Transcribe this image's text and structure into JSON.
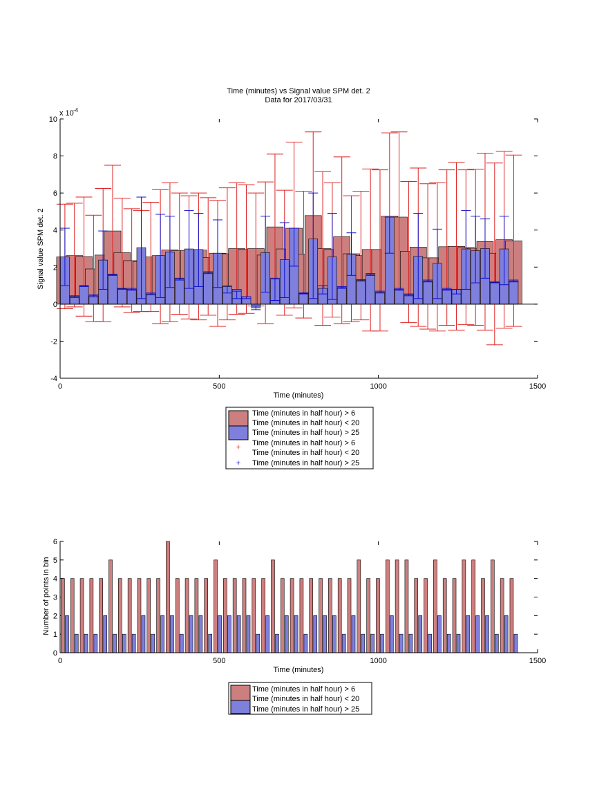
{
  "colors": {
    "red_face": "#cd7f7f",
    "blue_face": "#7f7fdd",
    "red_line": "#dd2222",
    "blue_line": "#1111cc",
    "edge": "#000000"
  },
  "chart_data": [
    {
      "type": "bar",
      "title": "Time (minutes) vs Signal value SPM det. 2",
      "subtitle": "Data for 2017/03/31",
      "xlabel": "Time (minutes)",
      "ylabel": "Signal value SPM det. 2",
      "yexponent": "x 10",
      "yexponent_power": "-4",
      "xlim": [
        0,
        1500
      ],
      "ylim": [
        -4,
        10
      ],
      "xticks": [
        "0",
        "500",
        "1000",
        "1500"
      ],
      "xtick_values": [
        0,
        500,
        1000,
        1500
      ],
      "yticks": [
        "-4",
        "-2",
        "0",
        "2",
        "4",
        "6",
        "8",
        "10"
      ],
      "ytick_values": [
        -4,
        -2,
        0,
        2,
        4,
        6,
        8,
        10
      ],
      "grid": false,
      "legend_position": "below",
      "legend": [
        "Time (minutes in half hour) > 6",
        "Time (minutes in half hour) < 20",
        "Time (minutes in half hour) > 25",
        "Time (minutes in half hour) > 6",
        "Time (minutes in half hour) < 20",
        "Time (minutes in half hour) > 25"
      ],
      "x": [
        15,
        45,
        75,
        105,
        135,
        165,
        195,
        225,
        255,
        285,
        315,
        345,
        375,
        405,
        435,
        465,
        495,
        525,
        555,
        585,
        615,
        645,
        675,
        705,
        735,
        765,
        795,
        825,
        855,
        885,
        915,
        945,
        975,
        1005,
        1035,
        1065,
        1095,
        1125,
        1155,
        1185,
        1215,
        1245,
        1275,
        1305,
        1335,
        1365,
        1395,
        1425
      ],
      "series": [
        {
          "values": [
            2.55,
            2.62,
            2.57,
            1.9,
            2.65,
            3.95,
            2.78,
            2.35,
            2.3,
            2.55,
            2.62,
            2.93,
            2.9,
            2.9,
            2.92,
            2.52,
            2.75,
            2.72,
            3.0,
            2.95,
            3.0,
            2.65,
            4.17,
            2.98,
            4.1,
            2.7,
            4.78,
            3.0,
            2.95,
            3.65,
            2.72,
            2.62,
            2.95,
            2.95,
            4.75,
            4.7,
            2.85,
            3.08,
            2.5,
            2.5,
            3.1,
            3.12,
            3.05,
            3.02,
            3.38,
            2.75,
            3.48,
            3.42
          ],
          "err_low": [
            -0.25,
            -0.15,
            -0.65,
            -0.95,
            -0.95,
            0.35,
            -0.15,
            -0.45,
            -0.4,
            -0.4,
            -1.05,
            -0.95,
            -0.55,
            -0.8,
            -0.85,
            -0.6,
            -1.2,
            -0.85,
            -0.55,
            -0.5,
            -0.1,
            -1.05,
            0.15,
            -0.6,
            -0.2,
            -0.75,
            0.2,
            -1.15,
            -0.7,
            -1.05,
            -0.95,
            -0.85,
            -1.45,
            -1.45,
            0.1,
            0.25,
            -1.0,
            -1.2,
            -1.35,
            -1.45,
            -1.15,
            -1.4,
            -1.1,
            -1.15,
            -1.4,
            -2.2,
            -1.3,
            -1.2
          ],
          "err_high": [
            5.4,
            5.45,
            5.78,
            4.8,
            6.25,
            7.5,
            5.72,
            5.15,
            5.05,
            5.5,
            6.18,
            6.55,
            6.0,
            5.85,
            6.0,
            5.75,
            5.6,
            6.28,
            6.55,
            6.45,
            6.0,
            6.6,
            8.1,
            6.15,
            8.75,
            6.1,
            9.3,
            7.15,
            6.55,
            7.95,
            5.85,
            6.1,
            7.3,
            7.25,
            9.25,
            9.3,
            6.62,
            7.35,
            6.5,
            6.55,
            7.25,
            7.65,
            7.25,
            7.28,
            8.15,
            7.62,
            8.25,
            8.05
          ]
        },
        {
          "values": [
            2.55,
            0.42,
            0.98,
            0.45,
            2.38,
            1.58,
            0.82,
            0.8,
            3.05,
            0.55,
            2.62,
            2.82,
            1.35,
            2.98,
            2.95,
            1.7,
            2.75,
            0.95,
            0.8,
            0.4,
            -0.2,
            2.78,
            1.35,
            2.4,
            4.1,
            0.58,
            3.52,
            0.85,
            2.55,
            0.9,
            2.7,
            1.28,
            1.6,
            0.65,
            4.7,
            0.8,
            0.5,
            2.58,
            1.25,
            2.2,
            0.8,
            0.8,
            2.98,
            2.88,
            3.0,
            1.18,
            2.98,
            1.25
          ],
          "err_low": [
            1.0,
            0.35,
            0.95,
            0.4,
            0.8,
            1.55,
            0.8,
            0.75,
            0.3,
            0.5,
            0.35,
            0.9,
            1.3,
            0.85,
            0.95,
            1.65,
            0.9,
            0.6,
            0.3,
            0.3,
            -0.3,
            0.65,
            0.2,
            0.35,
            2.05,
            0.55,
            0.3,
            0.55,
            0.25,
            0.85,
            1.55,
            1.25,
            1.55,
            0.6,
            2.75,
            0.75,
            0.45,
            0.3,
            1.2,
            0.3,
            0.75,
            0.55,
            0.8,
            1.15,
            1.4,
            1.15,
            1.05,
            1.2
          ],
          "err_high": [
            4.1,
            0.45,
            1.0,
            0.5,
            3.95,
            1.62,
            0.85,
            0.85,
            5.78,
            0.6,
            4.85,
            4.75,
            1.4,
            5.05,
            4.9,
            1.75,
            4.55,
            0.98,
            0.7,
            0.4,
            -0.1,
            4.75,
            1.4,
            4.4,
            4.1,
            0.62,
            6.0,
            1.0,
            4.9,
            0.95,
            3.85,
            1.32,
            1.65,
            0.7,
            4.7,
            0.85,
            0.55,
            4.9,
            1.3,
            4.05,
            0.85,
            0.8,
            5.05,
            4.75,
            4.6,
            1.2,
            4.75,
            1.3
          ]
        }
      ]
    },
    {
      "type": "bar",
      "xlabel": "Time (minutes)",
      "ylabel": "Number of points in bin",
      "xlim": [
        0,
        1500
      ],
      "ylim": [
        0,
        6
      ],
      "xticks": [
        "0",
        "500",
        "1000",
        "1500"
      ],
      "xtick_values": [
        0,
        500,
        1000,
        1500
      ],
      "yticks": [
        "0",
        "1",
        "2",
        "3",
        "4",
        "5",
        "6"
      ],
      "ytick_values": [
        0,
        1,
        2,
        3,
        4,
        5,
        6
      ],
      "grid": false,
      "legend_position": "below",
      "legend": [
        "Time (minutes in half hour) > 6",
        "Time (minutes in half hour) < 20",
        "Time (minutes in half hour) > 25"
      ],
      "x": [
        15,
        45,
        75,
        105,
        135,
        165,
        195,
        225,
        255,
        285,
        315,
        345,
        375,
        405,
        435,
        465,
        495,
        525,
        555,
        585,
        615,
        645,
        675,
        705,
        735,
        765,
        795,
        825,
        855,
        885,
        915,
        945,
        975,
        1005,
        1035,
        1065,
        1095,
        1125,
        1155,
        1185,
        1215,
        1245,
        1275,
        1305,
        1335,
        1365,
        1395,
        1425
      ],
      "series": [
        {
          "values": [
            4,
            4,
            4,
            4,
            4,
            5,
            4,
            4,
            4,
            4,
            4,
            6,
            4,
            4,
            4,
            4,
            5,
            4,
            4,
            4,
            4,
            4,
            5,
            4,
            4,
            4,
            4,
            4,
            4,
            4,
            4,
            5,
            4,
            4,
            5,
            5,
            5,
            4,
            4,
            5,
            4,
            4,
            5,
            5,
            4,
            5,
            4,
            4
          ]
        },
        {
          "values": [
            2,
            1,
            1,
            1,
            2,
            1,
            1,
            1,
            2,
            1,
            2,
            2,
            1,
            2,
            2,
            1,
            2,
            2,
            2,
            2,
            1,
            2,
            1,
            2,
            2,
            1,
            2,
            2,
            2,
            1,
            2,
            1,
            1,
            1,
            2,
            1,
            1,
            2,
            1,
            2,
            1,
            1,
            2,
            2,
            2,
            1,
            2,
            1
          ]
        }
      ]
    }
  ]
}
